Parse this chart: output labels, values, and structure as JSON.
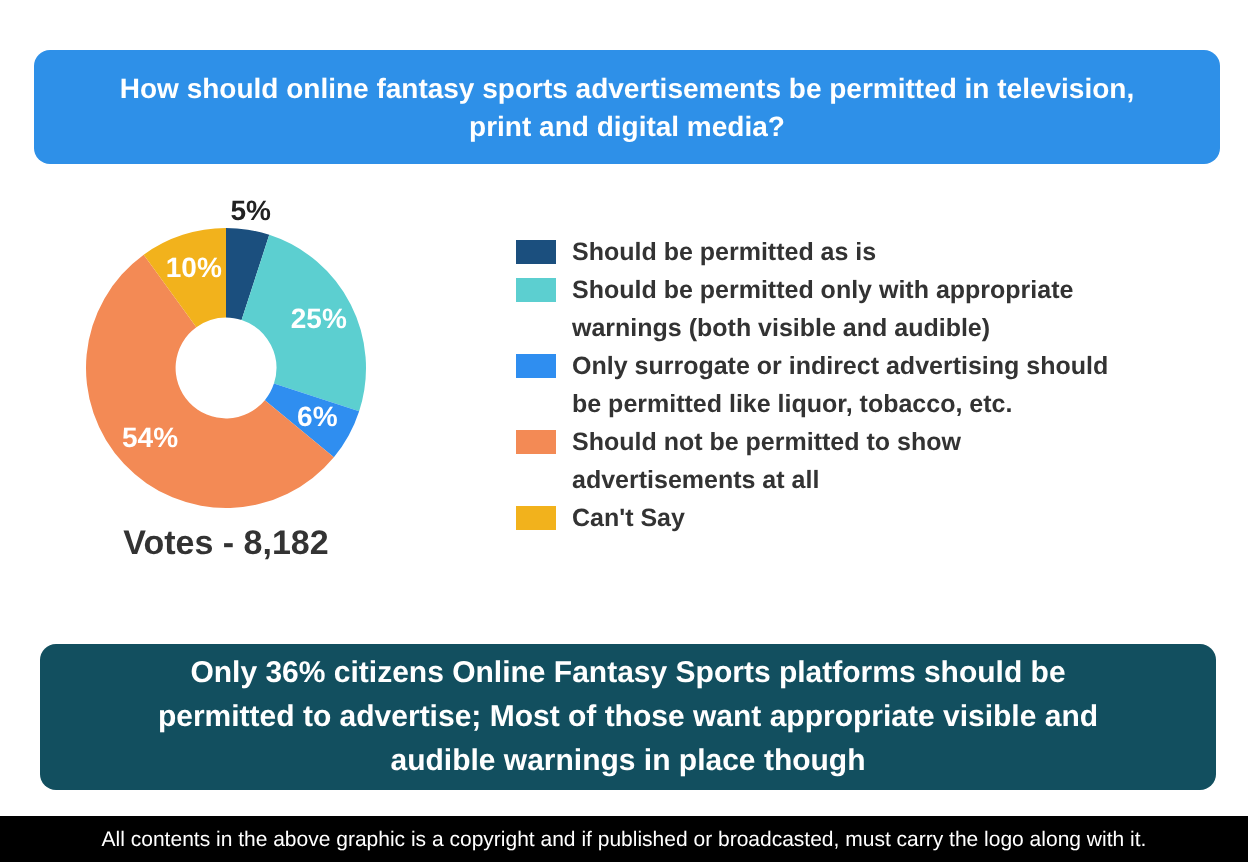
{
  "chart_data": {
    "type": "donut",
    "title": "How should online fantasy sports advertisements be permitted in television, print and digital media?",
    "subtitle": "Only 36% citizens Online Fantasy Sports platforms should be permitted to advertise; Most of those want appropriate visible and audible warnings in place though",
    "categories": [
      "Should be permitted as is",
      "Should be permitted only with appropriate warnings (both visible and audible)",
      "Only surrogate or indirect advertising should be permitted like liquor, tobacco, etc.",
      "Should not be permitted to show advertisements at all",
      "Can't Say"
    ],
    "values": [
      5,
      25,
      6,
      54,
      10
    ],
    "value_labels": [
      "5%",
      "25%",
      "6%",
      "54%",
      "10%"
    ],
    "colors": [
      "#1b4f7e",
      "#5ccfd0",
      "#2f8ef0",
      "#f38a55",
      "#f2b21c"
    ],
    "legend": "right",
    "annotations": [
      "Votes - 8,182",
      "All contents in the above graphic is a copyright and if published or broadcasted, must carry the logo along with it."
    ]
  }
}
